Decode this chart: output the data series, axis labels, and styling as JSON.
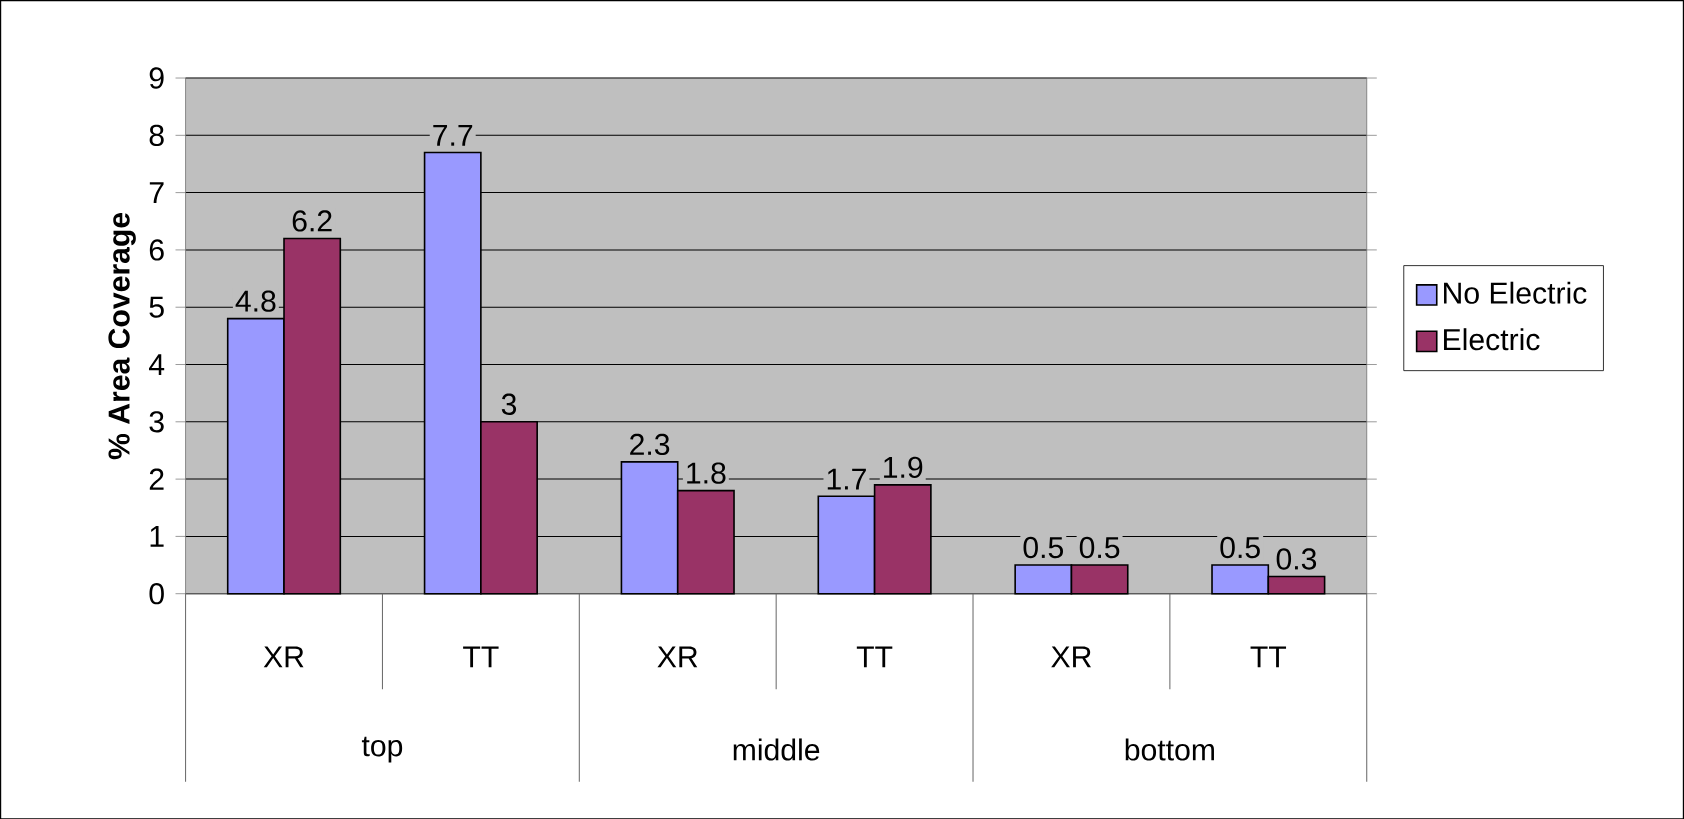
{
  "chart_data": {
    "type": "bar",
    "ylabel": "% Area Coverage",
    "categories": [
      "XR",
      "TT",
      "XR",
      "TT",
      "XR",
      "TT"
    ],
    "annotations": [
      "top",
      "middle",
      "bottom"
    ],
    "series": [
      {
        "name": "No Electric",
        "color": "#9999ff",
        "values": [
          4.8,
          7.7,
          2.3,
          1.7,
          0.5,
          0.5
        ]
      },
      {
        "name": "Electric",
        "color": "#993366",
        "values": [
          6.2,
          3,
          1.8,
          1.9,
          0.5,
          0.3
        ]
      }
    ],
    "ylim": [
      0,
      9
    ],
    "yticks": [
      0,
      1,
      2,
      3,
      4,
      5,
      6,
      7,
      8,
      9
    ],
    "grid": "y",
    "legend": "right",
    "data_labels": true
  }
}
